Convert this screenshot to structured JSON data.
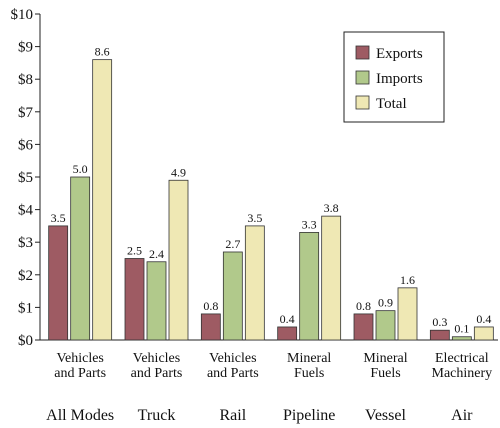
{
  "chart_data": {
    "type": "bar",
    "y_axis": {
      "min": 0,
      "max": 10,
      "step": 1,
      "tick_labels": [
        "$0",
        "$1",
        "$2",
        "$3",
        "$4",
        "$5",
        "$6",
        "$7",
        "$8",
        "$9",
        "$10"
      ]
    },
    "grid": false,
    "legend_position": "top-right",
    "categories": [
      {
        "commodity": [
          "Vehicles",
          "and Parts"
        ],
        "mode": "All Modes"
      },
      {
        "commodity": [
          "Vehicles",
          "and Parts"
        ],
        "mode": "Truck"
      },
      {
        "commodity": [
          "Vehicles",
          "and Parts"
        ],
        "mode": "Rail"
      },
      {
        "commodity": [
          "Mineral",
          "Fuels"
        ],
        "mode": "Pipeline"
      },
      {
        "commodity": [
          "Mineral",
          "Fuels"
        ],
        "mode": "Vessel"
      },
      {
        "commodity": [
          "Electrical",
          "Machinery"
        ],
        "mode": "Air"
      }
    ],
    "series": [
      {
        "name": "Exports",
        "color": "#9e5b63",
        "values": [
          3.5,
          2.5,
          0.8,
          0.4,
          0.8,
          0.3
        ],
        "labels": [
          "3.5",
          "2.5",
          "0.8",
          "0.4",
          "0.8",
          "0.3"
        ]
      },
      {
        "name": "Imports",
        "color": "#b1c98b",
        "values": [
          5.0,
          2.4,
          2.7,
          3.3,
          0.9,
          0.1
        ],
        "labels": [
          "5.0",
          "2.4",
          "2.7",
          "3.3",
          "0.9",
          "0.1"
        ]
      },
      {
        "name": "Total",
        "color": "#efe8b4",
        "values": [
          8.6,
          4.9,
          3.5,
          3.8,
          1.6,
          0.4
        ],
        "labels": [
          "8.6",
          "4.9",
          "3.5",
          "3.8",
          "1.6",
          "0.4"
        ]
      }
    ]
  }
}
